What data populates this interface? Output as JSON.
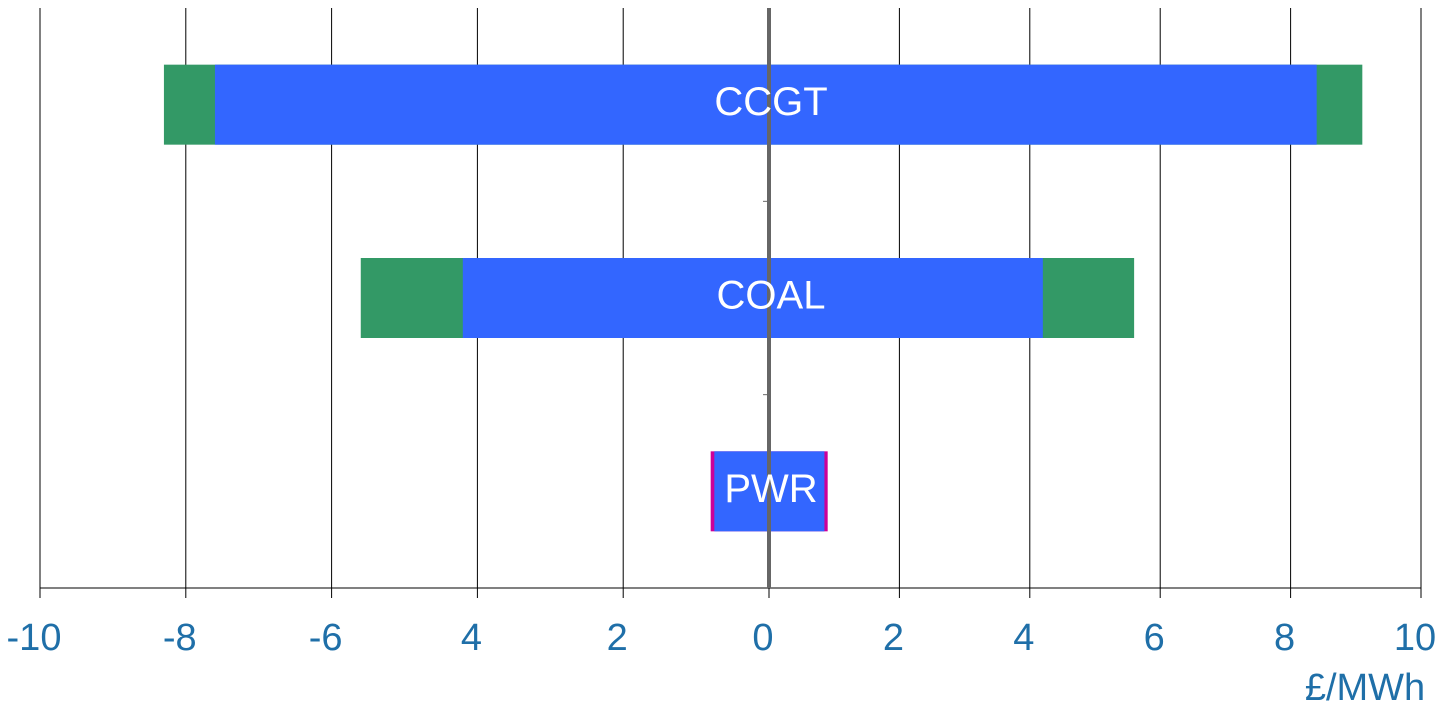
{
  "chart_data": {
    "type": "range-bar",
    "categories": [
      "CCGT",
      "COAL",
      "PWR"
    ],
    "series": [
      {
        "colors": [
          "#339966",
          "#339966",
          "#cc0099"
        ],
        "low": [
          -8.3,
          -5.6,
          -0.8
        ],
        "high": [
          9.1,
          5.6,
          0.9
        ]
      },
      {
        "colors": [
          "#3366ff",
          "#3366ff",
          "#3366ff"
        ],
        "low": [
          -7.6,
          -4.2,
          -0.75
        ],
        "high": [
          8.4,
          4.2,
          0.85
        ]
      }
    ],
    "xlim": [
      -10,
      10
    ],
    "xticks": [
      -10,
      -8,
      -6,
      {
        "value": -4,
        "label": "4"
      },
      {
        "value": -2,
        "label": "2"
      },
      0,
      2,
      4,
      6,
      8,
      10
    ],
    "x_label": "£/MWh",
    "grid": true
  }
}
